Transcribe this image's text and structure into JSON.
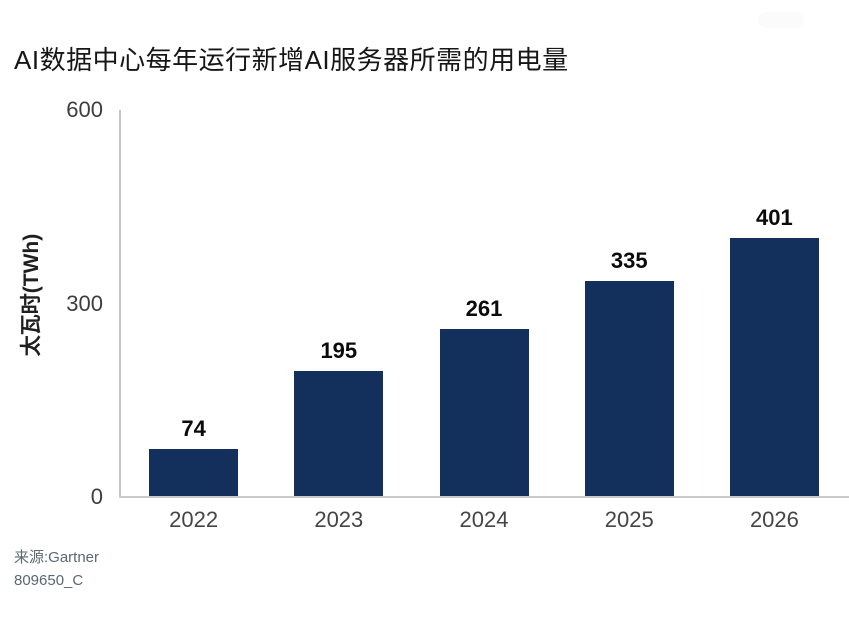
{
  "chart_data": {
    "type": "bar",
    "title": "AI数据中心每年运行新增AI服务器所需的用电量",
    "categories": [
      "2022",
      "2023",
      "2024",
      "2025",
      "2026"
    ],
    "values": [
      74,
      195,
      261,
      335,
      401
    ],
    "value_labels": [
      "74",
      "195",
      "261",
      "335",
      "401"
    ],
    "xlabel": "",
    "ylabel": "太瓦时(TWh)",
    "ylim": [
      0,
      600
    ],
    "yticks": [
      0,
      300,
      600
    ],
    "ytick_labels": [
      "0",
      "300",
      "600"
    ],
    "grid": false,
    "legend": "none",
    "bar_color": "#13305c"
  },
  "footer": {
    "source": "来源:Gartner",
    "doc_id": "809650_C"
  },
  "colors": {
    "bar": "#13305c",
    "axis_line": "#c5c8c7",
    "title_text": "#161616",
    "tick_text": "#3d3d3d",
    "category_text": "#454545",
    "value_text": "#0b0b0b",
    "source_text": "#5c6770",
    "background": "#ffffff"
  }
}
